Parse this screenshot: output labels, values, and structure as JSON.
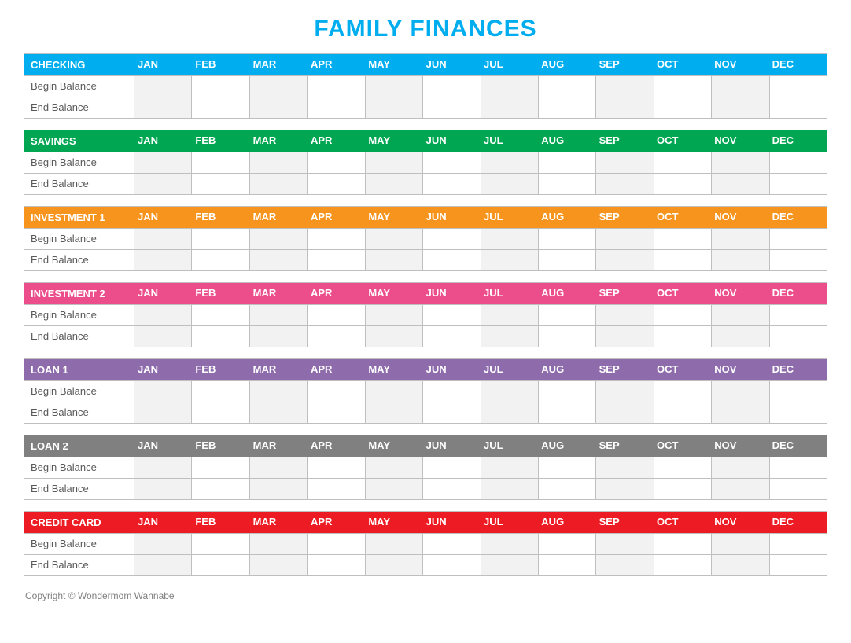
{
  "title": "FAMILY FINANCES",
  "title_color": "#00aeef",
  "months": [
    "JAN",
    "FEB",
    "MAR",
    "APR",
    "MAY",
    "JUN",
    "JUL",
    "AUG",
    "SEP",
    "OCT",
    "NOV",
    "DEC"
  ],
  "row_labels": [
    "Begin Balance",
    "End Balance"
  ],
  "sections": [
    {
      "name": "CHECKING",
      "color": "#00aeef"
    },
    {
      "name": "SAVINGS",
      "color": "#00a651"
    },
    {
      "name": "INVESTMENT 1",
      "color": "#f7941d"
    },
    {
      "name": "INVESTMENT 2",
      "color": "#ec4d8b"
    },
    {
      "name": "LOAN 1",
      "color": "#8e6bab"
    },
    {
      "name": "LOAN 2",
      "color": "#808080"
    },
    {
      "name": "CREDIT CARD",
      "color": "#ed1c24"
    }
  ],
  "border_color": "#bfbfbf",
  "alt_cell_bg": "#f2f2f2",
  "label_text_color": "#595959",
  "footer": "Copyright © Wondermom Wannabe",
  "footer_color": "#808080"
}
